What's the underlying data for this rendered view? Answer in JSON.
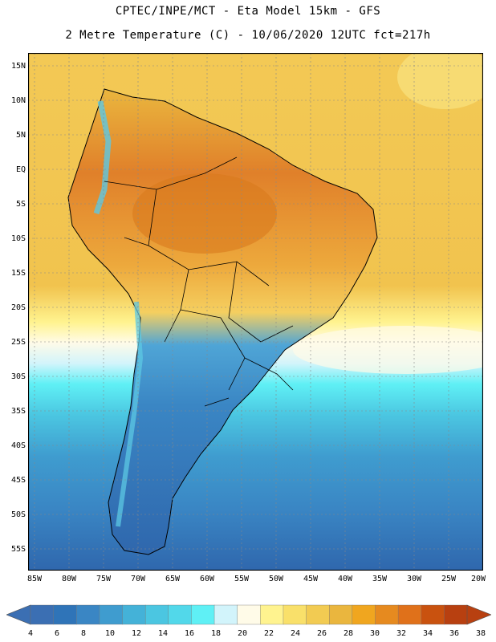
{
  "header": {
    "line1": "CPTEC/INPE/MCT -  Eta Model 15km - GFS",
    "line2": "2 Metre Temperature (C) - 10/06/2020 12UTC fct=217h"
  },
  "axes": {
    "lat_labels": [
      "15N",
      "10N",
      "5N",
      "EQ",
      "5S",
      "10S",
      "15S",
      "20S",
      "25S",
      "30S",
      "35S",
      "40S",
      "45S",
      "50S",
      "55S"
    ],
    "lon_labels": [
      "85W",
      "80W",
      "75W",
      "70W",
      "65W",
      "60W",
      "55W",
      "50W",
      "45W",
      "40W",
      "35W",
      "30W",
      "25W",
      "20W"
    ]
  },
  "legend": {
    "values": [
      "4",
      "6",
      "8",
      "10",
      "12",
      "14",
      "16",
      "18",
      "20",
      "22",
      "24",
      "26",
      "28",
      "30",
      "32",
      "34",
      "36",
      "38"
    ],
    "colors": [
      "#3b6fb3",
      "#2f74b8",
      "#3a86c4",
      "#3f9ccf",
      "#44b2d8",
      "#4bc6e1",
      "#52d8ea",
      "#5ff0f5",
      "#d2f4fb",
      "#fffbe8",
      "#fff38f",
      "#f9e06a",
      "#f2cb52",
      "#eab63e",
      "#f0a61f",
      "#e68a1f",
      "#e0711a",
      "#c9520f",
      "#b84010"
    ],
    "low_color": "#3b6fb3",
    "high_color": "#b84010"
  },
  "map": {
    "ocean_colors": {
      "north_warm": "#f3c955",
      "mid_atlantic": "#f1c34e",
      "south_cold": "#3f7ec0",
      "deep_south": "#2f67ad"
    },
    "land_colors": {
      "amazon": "#e08a23",
      "brazil_east": "#eda93c",
      "pampas": "#4fa5d6",
      "patagonia": "#3165a8",
      "andes": "#5cc8e3"
    }
  }
}
